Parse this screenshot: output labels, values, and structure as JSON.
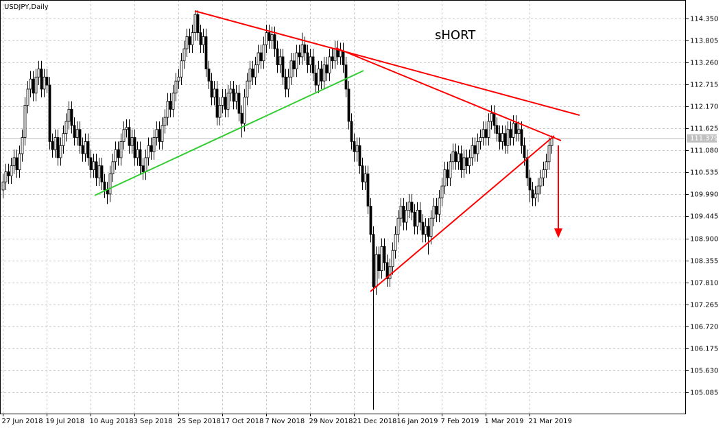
{
  "chart_data": {
    "type": "candlestick",
    "title": "USDJPY,Daily",
    "annotation": "sHORT",
    "categories": [
      "27 Jun 2018",
      null,
      null,
      null,
      null,
      null,
      null,
      null,
      null,
      null,
      null,
      null,
      null,
      null,
      null,
      null,
      "19 Jul 2018",
      null,
      null,
      null,
      null,
      null,
      null,
      null,
      null,
      null,
      null,
      null,
      null,
      null,
      null,
      null,
      "10 Aug 2018",
      null,
      null,
      null,
      null,
      null,
      null,
      null,
      null,
      null,
      null,
      null,
      null,
      null,
      null,
      null,
      "3 Sep 2018",
      null,
      null,
      null,
      null,
      null,
      null,
      null,
      null,
      null,
      null,
      null,
      null,
      null,
      null,
      null,
      "25 Sep 2018",
      null,
      null,
      null,
      null,
      null,
      null,
      null,
      null,
      null,
      null,
      null,
      null,
      null,
      null,
      null,
      "17 Oct 2018",
      null,
      null,
      null,
      null,
      null,
      null,
      null,
      null,
      null,
      null,
      null,
      null,
      null,
      null,
      null,
      "7 Nov 2018",
      null,
      null,
      null,
      null,
      null,
      null,
      null,
      null,
      null,
      null,
      null,
      null,
      null,
      null,
      null,
      "29 Nov 2018",
      null,
      null,
      null,
      null,
      null,
      null,
      null,
      null,
      null,
      null,
      null,
      null,
      null,
      null,
      null,
      "21 Dec 2018",
      null,
      null,
      null,
      null,
      null,
      null,
      null,
      null,
      null,
      null,
      null,
      null,
      null,
      null,
      null,
      "16 Jan 2019",
      null,
      null,
      null,
      null,
      null,
      null,
      null,
      null,
      null,
      null,
      null,
      null,
      null,
      null,
      null,
      "7 Feb 2019",
      null,
      null,
      null,
      null,
      null,
      null,
      null,
      null,
      null,
      null,
      null,
      null,
      null,
      null,
      null,
      "1 Mar 2019",
      null,
      null,
      null,
      null,
      null,
      null,
      null,
      null,
      null,
      null,
      null,
      null,
      null,
      null,
      null,
      "21 Mar 2019",
      null,
      null,
      null,
      null,
      null,
      null,
      null,
      null
    ],
    "open": [
      110.1,
      110.3,
      110.55,
      110.45,
      110.7,
      110.9,
      110.6,
      111.0,
      111.4,
      112.2,
      112.6,
      112.85,
      112.5,
      112.9,
      113.1,
      112.6,
      112.9,
      112.7,
      111.3,
      111.1,
      111.4,
      110.9,
      111.2,
      111.5,
      111.8,
      112.1,
      111.7,
      111.4,
      111.6,
      111.2,
      111.0,
      111.3,
      110.9,
      110.6,
      110.8,
      110.4,
      110.7,
      110.3,
      110.1,
      110.0,
      110.5,
      110.8,
      111.1,
      110.9,
      111.3,
      111.6,
      111.65,
      111.2,
      111.4,
      110.9,
      111.1,
      110.7,
      110.55,
      110.9,
      111.2,
      111.05,
      111.4,
      111.6,
      111.3,
      111.7,
      111.9,
      112.3,
      112.1,
      112.5,
      112.8,
      112.9,
      113.3,
      113.6,
      113.9,
      113.7,
      114.0,
      114.45,
      114.0,
      113.7,
      113.9,
      113.1,
      112.8,
      112.4,
      112.6,
      111.9,
      112.2,
      112.4,
      112.1,
      112.5,
      112.6,
      112.3,
      112.5,
      112.0,
      111.75,
      112.4,
      112.8,
      113.1,
      112.9,
      113.2,
      113.5,
      113.3,
      113.7,
      114.0,
      113.8,
      113.95,
      113.6,
      113.2,
      113.4,
      112.9,
      112.6,
      112.9,
      113.3,
      113.1,
      113.5,
      113.4,
      113.7,
      113.5,
      113.2,
      113.4,
      113.0,
      112.7,
      113.1,
      112.8,
      113.2,
      113.0,
      113.4,
      113.3,
      113.6,
      113.4,
      113.55,
      113.2,
      112.6,
      111.8,
      111.3,
      111.05,
      111.2,
      110.7,
      110.3,
      110.5,
      109.7,
      109.0,
      107.7,
      108.5,
      108.1,
      108.7,
      108.3,
      107.9,
      108.2,
      108.6,
      109.0,
      109.4,
      109.7,
      109.3,
      109.6,
      109.8,
      109.55,
      109.2,
      109.6,
      109.3,
      109.0,
      109.2,
      108.95,
      109.4,
      109.7,
      109.5,
      109.9,
      110.2,
      110.6,
      110.4,
      110.8,
      111.05,
      110.8,
      111.0,
      110.6,
      110.9,
      110.7,
      110.9,
      111.2,
      111.0,
      111.3,
      111.4,
      111.6,
      111.4,
      111.8,
      112.0,
      111.7,
      111.5,
      111.3,
      111.5,
      111.2,
      111.6,
      111.4,
      111.75,
      111.5,
      111.6,
      111.2,
      110.9,
      110.4,
      110.1,
      109.9,
      110.0,
      110.2,
      110.4,
      110.6,
      110.8,
      111.2
    ],
    "high": [
      110.5,
      110.75,
      110.75,
      110.9,
      111.1,
      111.1,
      111.2,
      111.6,
      112.4,
      112.8,
      113.05,
      113.05,
      113.1,
      113.3,
      113.3,
      113.1,
      113.1,
      112.9,
      111.5,
      111.6,
      111.6,
      111.4,
      111.7,
      112.0,
      112.3,
      112.3,
      111.9,
      111.8,
      111.8,
      111.4,
      111.5,
      111.5,
      111.1,
      111.0,
      111.0,
      110.9,
      110.9,
      110.5,
      110.3,
      110.7,
      111.0,
      111.3,
      111.3,
      111.5,
      111.8,
      111.85,
      111.85,
      111.6,
      111.6,
      111.3,
      111.3,
      110.9,
      111.1,
      111.4,
      111.4,
      111.6,
      111.8,
      111.8,
      111.9,
      112.1,
      112.5,
      112.5,
      112.7,
      113.0,
      113.1,
      113.5,
      113.8,
      114.1,
      114.1,
      114.2,
      114.55,
      114.55,
      114.2,
      114.1,
      114.1,
      113.3,
      113.0,
      112.8,
      112.8,
      112.4,
      112.6,
      112.6,
      112.7,
      112.8,
      112.8,
      112.7,
      112.7,
      112.2,
      112.6,
      113.0,
      113.3,
      113.3,
      113.4,
      113.7,
      113.7,
      113.9,
      114.2,
      114.2,
      114.15,
      114.15,
      113.8,
      113.6,
      113.6,
      113.1,
      113.1,
      113.5,
      113.5,
      113.7,
      113.7,
      114.0,
      113.9,
      113.7,
      113.6,
      113.6,
      113.2,
      113.3,
      113.3,
      113.4,
      113.4,
      113.6,
      113.6,
      113.8,
      113.8,
      113.75,
      113.75,
      113.4,
      112.8,
      112.0,
      111.5,
      111.4,
      111.4,
      110.9,
      110.7,
      110.7,
      109.9,
      109.2,
      108.7,
      108.7,
      108.9,
      108.9,
      108.5,
      108.4,
      108.8,
      109.2,
      109.6,
      109.9,
      109.9,
      109.8,
      110.0,
      110.0,
      109.75,
      109.8,
      109.8,
      109.5,
      109.4,
      109.4,
      109.6,
      109.9,
      109.9,
      110.1,
      110.4,
      110.8,
      110.8,
      111.0,
      111.25,
      111.25,
      111.2,
      111.2,
      111.1,
      111.1,
      111.1,
      111.4,
      111.4,
      111.5,
      111.6,
      111.8,
      111.8,
      112.0,
      112.2,
      112.2,
      111.9,
      111.7,
      111.7,
      111.7,
      111.8,
      111.8,
      111.95,
      111.95,
      111.8,
      111.8,
      111.4,
      111.1,
      110.6,
      110.3,
      110.2,
      110.4,
      110.6,
      110.8,
      111.0,
      111.4,
      111.45
    ],
    "low": [
      109.9,
      110.1,
      110.25,
      110.25,
      110.5,
      110.4,
      110.4,
      110.8,
      111.2,
      112.0,
      112.4,
      112.3,
      112.3,
      112.7,
      112.4,
      112.4,
      112.5,
      111.1,
      110.9,
      110.9,
      110.7,
      110.7,
      111.0,
      111.3,
      111.6,
      111.5,
      111.2,
      111.2,
      111.0,
      110.8,
      110.8,
      110.7,
      110.4,
      110.4,
      110.2,
      110.2,
      110.1,
      109.9,
      109.75,
      109.8,
      110.3,
      110.6,
      110.7,
      110.7,
      111.1,
      111.4,
      111.0,
      111.0,
      110.7,
      110.7,
      110.5,
      110.35,
      110.35,
      110.7,
      110.85,
      110.85,
      111.2,
      111.1,
      111.1,
      111.5,
      111.7,
      111.9,
      111.9,
      112.3,
      112.6,
      112.7,
      113.1,
      113.4,
      113.5,
      113.5,
      113.8,
      113.8,
      113.5,
      113.5,
      112.9,
      112.6,
      112.2,
      112.2,
      111.7,
      111.7,
      112.0,
      111.9,
      111.9,
      112.3,
      112.1,
      112.1,
      111.8,
      111.4,
      111.55,
      112.2,
      112.6,
      112.7,
      112.7,
      113.0,
      113.1,
      113.1,
      113.5,
      113.6,
      113.6,
      113.4,
      113.0,
      113.0,
      112.7,
      112.4,
      112.4,
      112.7,
      112.9,
      112.9,
      113.2,
      113.2,
      113.3,
      113.0,
      113.0,
      112.8,
      112.5,
      112.5,
      112.6,
      112.6,
      112.8,
      112.8,
      113.1,
      113.1,
      113.2,
      113.2,
      113.0,
      112.4,
      111.6,
      111.1,
      110.8,
      110.8,
      110.5,
      110.1,
      110.1,
      109.5,
      108.8,
      104.65,
      107.5,
      107.9,
      107.9,
      108.1,
      107.7,
      107.7,
      108.0,
      108.4,
      108.8,
      109.2,
      109.1,
      109.1,
      109.4,
      109.35,
      109.0,
      109.0,
      109.1,
      108.8,
      108.8,
      108.5,
      108.75,
      109.2,
      109.3,
      109.3,
      109.7,
      110.0,
      110.2,
      110.2,
      110.6,
      110.6,
      110.6,
      110.4,
      110.4,
      110.5,
      110.5,
      110.7,
      110.8,
      110.8,
      111.1,
      111.2,
      111.2,
      111.2,
      111.6,
      111.5,
      111.3,
      111.1,
      111.1,
      111.0,
      111.0,
      111.2,
      111.2,
      111.3,
      111.3,
      111.0,
      110.7,
      110.2,
      109.8,
      109.7,
      109.7,
      109.8,
      110.0,
      110.2,
      110.4,
      110.6,
      111.0
    ],
    "close": [
      110.3,
      110.55,
      110.45,
      110.7,
      110.9,
      110.6,
      111.0,
      111.4,
      112.2,
      112.6,
      112.85,
      112.5,
      112.9,
      113.1,
      112.6,
      112.9,
      112.7,
      111.3,
      111.1,
      111.4,
      110.9,
      111.2,
      111.5,
      111.8,
      112.1,
      111.7,
      111.4,
      111.6,
      111.2,
      111.0,
      111.3,
      110.9,
      110.6,
      110.8,
      110.4,
      110.7,
      110.3,
      110.1,
      110.0,
      110.5,
      110.8,
      111.1,
      110.9,
      111.3,
      111.6,
      111.65,
      111.2,
      111.4,
      110.9,
      111.1,
      110.7,
      110.55,
      110.9,
      111.2,
      111.05,
      111.4,
      111.6,
      111.3,
      111.7,
      111.9,
      112.3,
      112.1,
      112.5,
      112.8,
      112.9,
      113.3,
      113.6,
      113.9,
      113.7,
      114.0,
      114.45,
      114.0,
      113.7,
      113.9,
      113.1,
      112.8,
      112.4,
      112.6,
      111.9,
      112.2,
      112.4,
      112.1,
      112.5,
      112.6,
      112.3,
      112.5,
      112.0,
      111.75,
      112.4,
      112.8,
      113.1,
      112.9,
      113.2,
      113.5,
      113.3,
      113.7,
      114.0,
      113.8,
      113.95,
      113.6,
      113.2,
      113.4,
      112.9,
      112.6,
      112.9,
      113.3,
      113.1,
      113.5,
      113.4,
      113.7,
      113.5,
      113.2,
      113.4,
      113.0,
      112.7,
      113.1,
      112.8,
      113.2,
      113.0,
      113.4,
      113.3,
      113.6,
      113.4,
      113.55,
      113.2,
      112.6,
      111.8,
      111.3,
      111.05,
      111.2,
      110.7,
      110.3,
      110.5,
      109.7,
      109.0,
      107.7,
      108.5,
      108.1,
      108.7,
      108.3,
      107.9,
      108.2,
      108.6,
      109.0,
      109.4,
      109.7,
      109.3,
      109.6,
      109.8,
      109.55,
      109.2,
      109.6,
      109.3,
      109.0,
      109.2,
      108.95,
      109.4,
      109.7,
      109.5,
      109.9,
      110.2,
      110.6,
      110.4,
      110.8,
      111.05,
      110.8,
      111.0,
      110.6,
      110.9,
      110.7,
      110.9,
      111.2,
      111.0,
      111.3,
      111.4,
      111.6,
      111.4,
      111.8,
      112.0,
      111.7,
      111.5,
      111.3,
      111.5,
      111.2,
      111.6,
      111.4,
      111.75,
      111.5,
      111.6,
      111.2,
      110.9,
      110.4,
      110.1,
      109.9,
      110.0,
      110.2,
      110.4,
      110.6,
      110.8,
      111.2,
      111.38
    ],
    "current_price": 111.379,
    "ylim": [
      104.557,
      114.809
    ],
    "yticks": [
      {
        "value": 114.35,
        "label": "114.350"
      },
      {
        "value": 113.805,
        "label": "113.805"
      },
      {
        "value": 113.26,
        "label": "113.260"
      },
      {
        "value": 112.715,
        "label": "112.715"
      },
      {
        "value": 112.17,
        "label": "112.170"
      },
      {
        "value": 111.625,
        "label": "111.625"
      },
      {
        "value": 111.08,
        "label": "111.080"
      },
      {
        "value": 110.535,
        "label": "110.535"
      },
      {
        "value": 109.99,
        "label": "109.990"
      },
      {
        "value": 109.445,
        "label": "109.445"
      },
      {
        "value": 108.9,
        "label": "108.900"
      },
      {
        "value": 108.355,
        "label": "108.355"
      },
      {
        "value": 107.81,
        "label": "107.810"
      },
      {
        "value": 107.265,
        "label": "107.265"
      },
      {
        "value": 106.72,
        "label": "106.720"
      },
      {
        "value": 106.175,
        "label": "106.175"
      },
      {
        "value": 105.63,
        "label": "105.630"
      },
      {
        "value": 105.085,
        "label": "105.085"
      }
    ],
    "grid": true,
    "up_color": "#ffffff",
    "down_color": "#000000"
  }
}
